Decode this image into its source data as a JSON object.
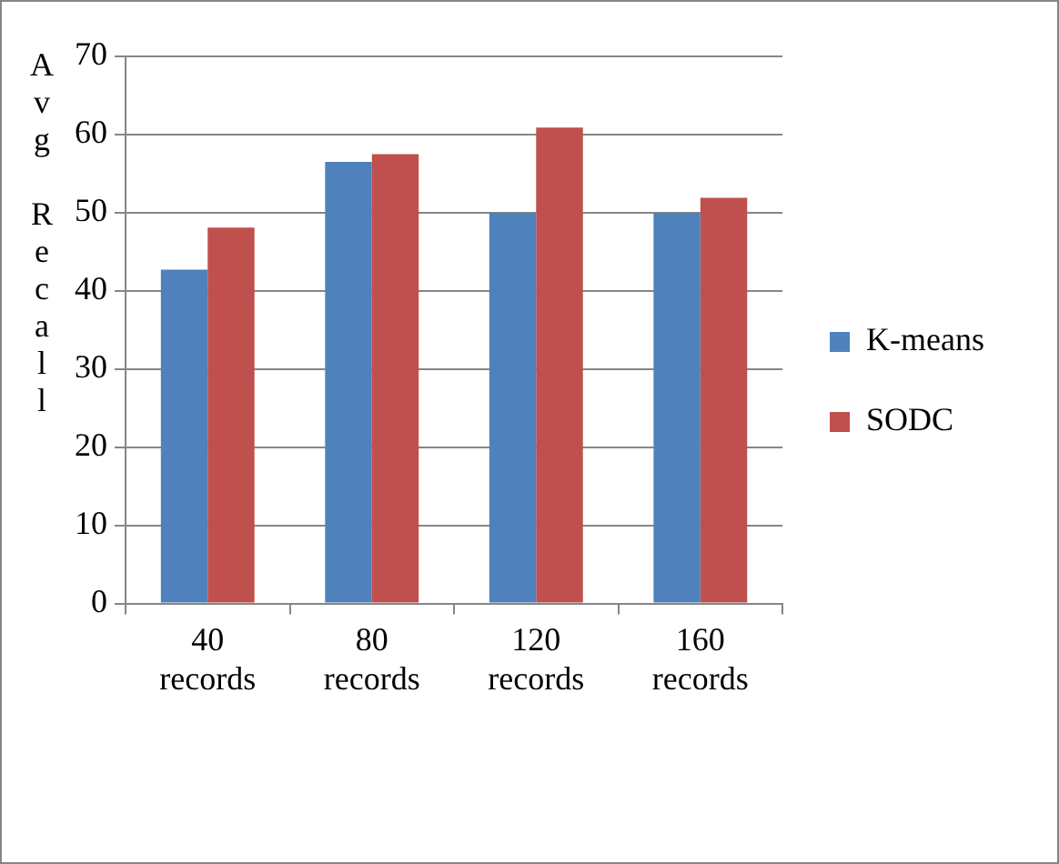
{
  "chart_data": {
    "type": "bar",
    "ylabel": "Avg Recall",
    "categories": [
      "40 records",
      "80 records",
      "120 records",
      "160 records"
    ],
    "series": [
      {
        "name": "K-means",
        "color": "#4f81bd",
        "values": [
          42.7,
          56.5,
          50,
          50
        ]
      },
      {
        "name": "SODC",
        "color": "#c0504d",
        "values": [
          48.1,
          57.5,
          60.9,
          51.9
        ]
      }
    ],
    "ylim": [
      0,
      70
    ],
    "yticks": [
      0,
      10,
      20,
      30,
      40,
      50,
      60,
      70
    ],
    "grid": "y",
    "legend": "right"
  }
}
